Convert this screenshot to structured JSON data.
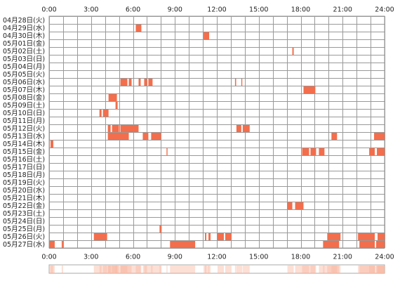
{
  "chart_data": {
    "type": "timeline",
    "categories": [
      "04月28日(火)",
      "04月29日(水)",
      "04月30日(木)",
      "05月01日(金)",
      "05月02日(土)",
      "05月03日(日)",
      "05月04日(月)",
      "05月05日(火)",
      "05月06日(水)",
      "05月07日(木)",
      "05月08日(金)",
      "05月09日(土)",
      "05月10日(日)",
      "05月11日(月)",
      "05月12日(火)",
      "05月13日(水)",
      "05月14日(木)",
      "05月15日(金)",
      "05月16日(土)",
      "05月17日(日)",
      "05月18日(月)",
      "05月19日(火)",
      "05月20日(水)",
      "05月21日(木)",
      "05月22日(金)",
      "05月23日(土)",
      "05月24日(日)",
      "05月25日(月)",
      "05月26日(火)",
      "05月27日(水)"
    ],
    "values": [
      [],
      [
        [
          6.2,
          6.6
        ]
      ],
      [
        [
          11.05,
          11.45
        ]
      ],
      [],
      [
        [
          17.4,
          17.5
        ]
      ],
      [],
      [],
      [],
      [
        [
          5.1,
          5.6
        ],
        [
          5.7,
          5.9
        ],
        [
          6.4,
          6.55
        ],
        [
          6.8,
          7.0
        ],
        [
          7.1,
          7.4
        ],
        [
          13.3,
          13.38
        ],
        [
          13.75,
          13.82
        ]
      ],
      [
        [
          18.2,
          19.05
        ]
      ],
      [
        [
          4.25,
          4.85
        ]
      ],
      [
        [
          4.75,
          4.9
        ]
      ],
      [
        [
          3.6,
          3.75
        ],
        [
          3.85,
          4.25
        ]
      ],
      [],
      [
        [
          4.2,
          4.4
        ],
        [
          4.5,
          5.0
        ],
        [
          5.1,
          6.4
        ],
        [
          13.4,
          13.75
        ],
        [
          13.85,
          14.35
        ]
      ],
      [
        [
          4.2,
          5.7
        ],
        [
          6.7,
          7.1
        ],
        [
          7.3,
          8.0
        ],
        [
          20.2,
          20.6
        ],
        [
          23.25,
          24
        ]
      ],
      [
        [
          0.1,
          0.3
        ]
      ],
      [
        [
          8.4,
          8.47
        ],
        [
          18.1,
          18.6
        ],
        [
          18.7,
          19.1
        ],
        [
          19.3,
          19.7
        ],
        [
          22.9,
          23.3
        ],
        [
          23.45,
          24
        ]
      ],
      [],
      [],
      [],
      [],
      [],
      [],
      [
        [
          17.05,
          17.4
        ],
        [
          17.6,
          18.2
        ]
      ],
      [],
      [],
      [
        [
          7.9,
          8.05
        ]
      ],
      [
        [
          3.2,
          4.15
        ],
        [
          11.15,
          11.25
        ],
        [
          11.4,
          11.55
        ],
        [
          12.05,
          12.5
        ],
        [
          12.6,
          13.05
        ],
        [
          19.9,
          20.85
        ],
        [
          22.1,
          23.3
        ],
        [
          23.5,
          24
        ]
      ],
      [
        [
          0,
          0.4
        ],
        [
          0.9,
          1.0
        ],
        [
          8.65,
          10.45
        ],
        [
          19.6,
          20.75
        ],
        [
          22.2,
          23.3
        ],
        [
          23.4,
          24
        ]
      ]
    ],
    "color": "#f26e4c",
    "summary_color": "#f9b8a2",
    "xlim": [
      0,
      24
    ],
    "xticks": [
      {
        "value": 0,
        "label": "0:00"
      },
      {
        "value": 3,
        "label": "3:00"
      },
      {
        "value": 6,
        "label": "6:00"
      },
      {
        "value": 9,
        "label": "9:00"
      },
      {
        "value": 12,
        "label": "12:00"
      },
      {
        "value": 15,
        "label": "15:00"
      },
      {
        "value": 18,
        "label": "18:00"
      },
      {
        "value": 21,
        "label": "21:00"
      },
      {
        "value": 24,
        "label": "24:00"
      }
    ],
    "minor_xticks": [
      0,
      1,
      2,
      3,
      4,
      5,
      6,
      7,
      8,
      9,
      10,
      11,
      12,
      13,
      14,
      15,
      16,
      17,
      18,
      19,
      20,
      21,
      22,
      23,
      24
    ]
  }
}
